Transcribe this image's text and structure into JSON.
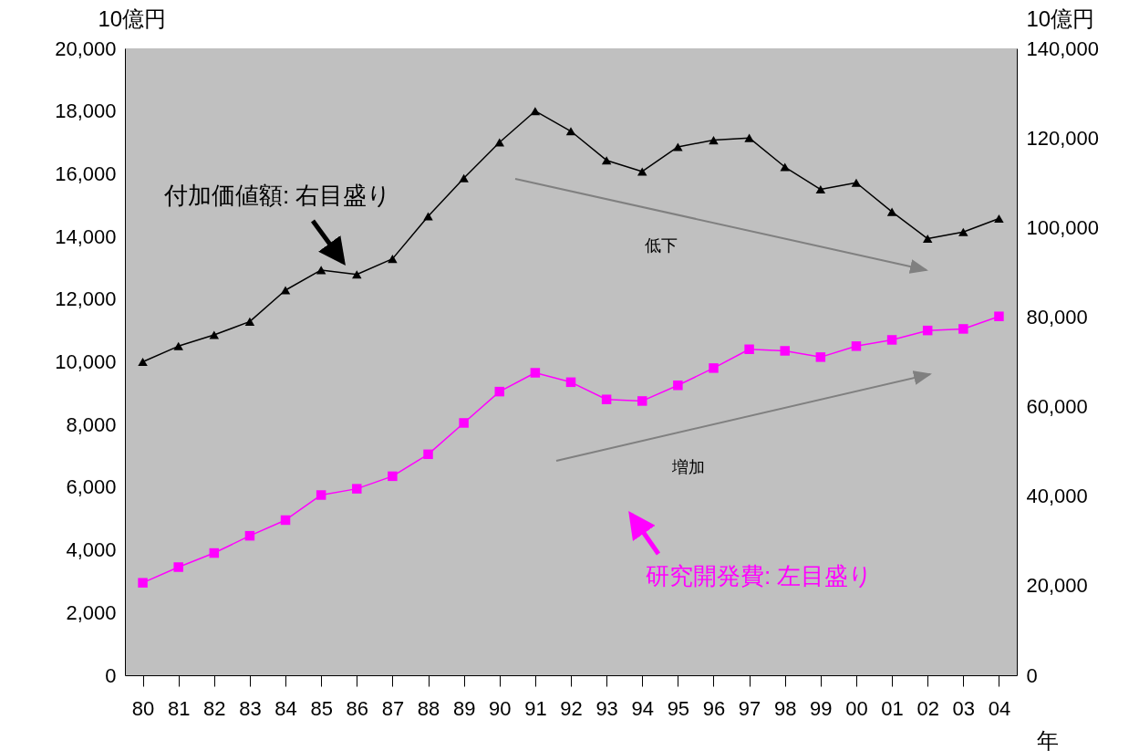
{
  "chart_data": {
    "type": "line",
    "categories": [
      "80",
      "81",
      "82",
      "83",
      "84",
      "85",
      "86",
      "87",
      "88",
      "89",
      "90",
      "91",
      "92",
      "93",
      "94",
      "95",
      "96",
      "97",
      "98",
      "99",
      "00",
      "01",
      "02",
      "03",
      "04"
    ],
    "xlabel": "年",
    "ylabel": "10億円",
    "y2label": "10億円",
    "ylim": [
      0,
      20000
    ],
    "yticks": [
      0,
      {
        "value": 2000,
        "label": "2,000"
      },
      {
        "value": 4000,
        "label": "4,000"
      },
      {
        "value": 6000,
        "label": "6,000"
      },
      {
        "value": 8000,
        "label": "8,000"
      },
      {
        "value": 10000,
        "label": "10,000"
      },
      {
        "value": 12000,
        "label": "12,000"
      },
      {
        "value": 14000,
        "label": "14,000"
      },
      {
        "value": 16000,
        "label": "16,000"
      },
      {
        "value": 18000,
        "label": "18,000"
      },
      {
        "value": 20000,
        "label": "20,000"
      }
    ],
    "y2lim": [
      0,
      140000
    ],
    "y2ticks": [
      0,
      {
        "value": 20000,
        "label": "20,000"
      },
      {
        "value": 40000,
        "label": "40,000"
      },
      {
        "value": 60000,
        "label": "60,000"
      },
      {
        "value": 80000,
        "label": "80,000"
      },
      {
        "value": 100000,
        "label": "100,000"
      },
      {
        "value": 120000,
        "label": "120,000"
      },
      {
        "value": 140000,
        "label": "140,000"
      }
    ],
    "grid": false,
    "legend": "bottom",
    "series": [
      {
        "name": "研究開発費: 左目盛り",
        "color": "#ff00ff",
        "marker": "square",
        "values": [
          2950,
          3450,
          3900,
          4450,
          4950,
          5750,
          5950,
          6350,
          7050,
          8050,
          9050,
          9650,
          9350,
          8800,
          8750,
          9250,
          9800,
          10400,
          10350,
          10150,
          10500,
          10700,
          11000,
          11050,
          11450
        ]
      },
      {
        "name": "付加価値額: 右目盛り",
        "color": "#000000",
        "marker": "triangle",
        "axis": "y2",
        "values": [
          70000,
          73500,
          76000,
          79000,
          86000,
          90500,
          89500,
          93000,
          102500,
          111000,
          119000,
          126000,
          121500,
          115000,
          112500,
          118000,
          119500,
          120000,
          113500,
          108500,
          110000,
          103500,
          97500,
          99000,
          102000
        ]
      }
    ],
    "annotations": [
      "低下",
      "増加"
    ]
  }
}
